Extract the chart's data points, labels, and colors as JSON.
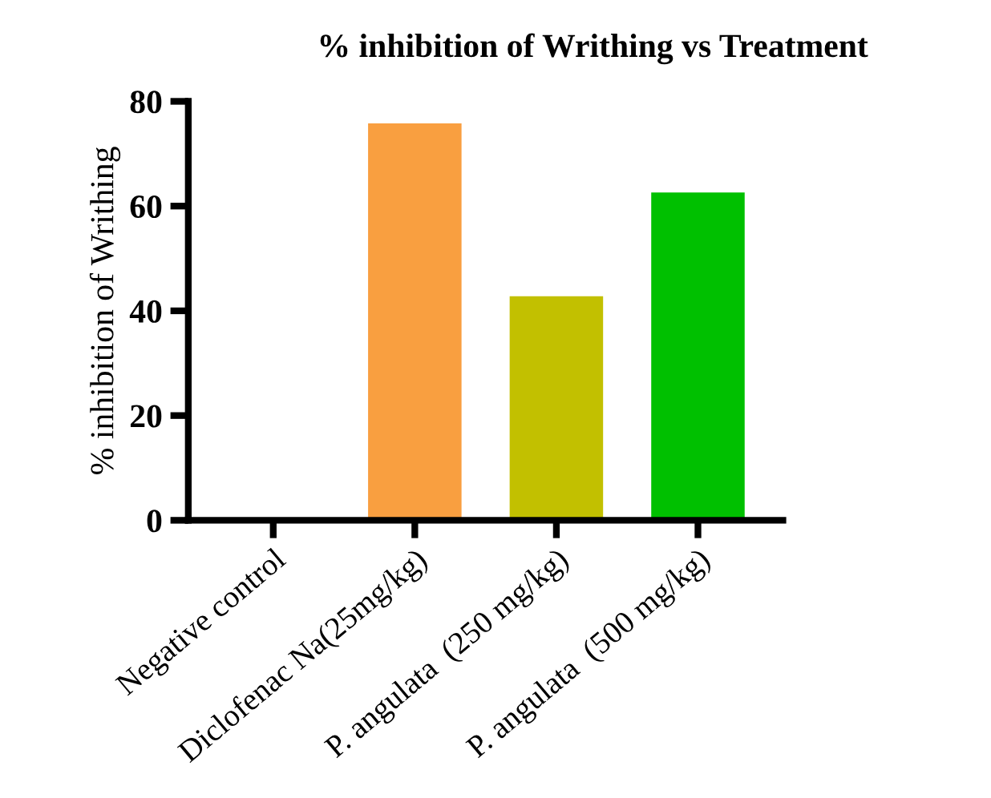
{
  "chart_data": {
    "type": "bar",
    "title": "% inhibition of Writhing vs Treatment",
    "ylabel": "% inhibition of Writhing",
    "categories": [
      "Negative control",
      "Diclofenac Na(25mg/kg)",
      "P. angulata  (250 mg/kg)",
      "P. angulata  (500 mg/kg)"
    ],
    "values": [
      0,
      75.8,
      42.8,
      62.6
    ],
    "colors": [
      "#000000",
      "#f99f40",
      "#c2c000",
      "#00c000"
    ],
    "ylim": [
      0,
      80
    ],
    "yticks": [
      0,
      20,
      40,
      60,
      80
    ],
    "grid": false
  }
}
